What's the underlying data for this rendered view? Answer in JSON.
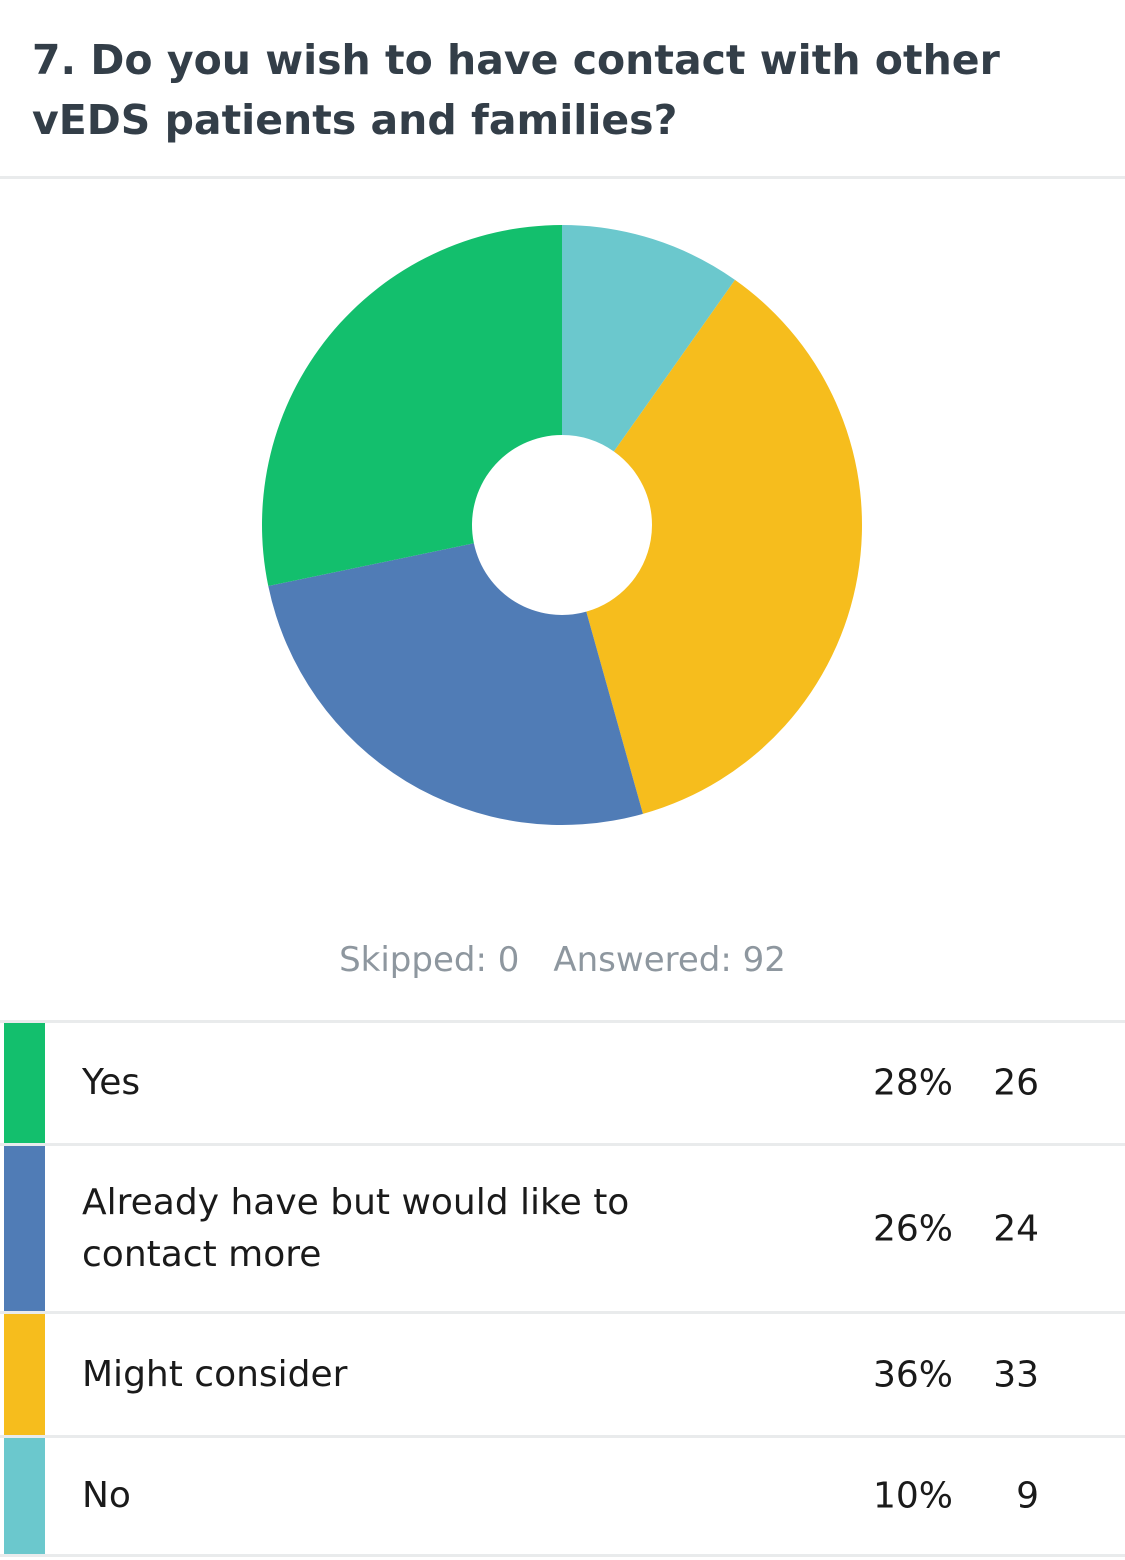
{
  "question": {
    "title": "7. Do you wish to have contact with other vEDS patients and families?"
  },
  "summary": {
    "skipped_label": "Skipped: 0",
    "answered_label": "Answered: 92"
  },
  "chart_data": {
    "type": "pie",
    "donut": true,
    "title": "7. Do you wish to have contact with other vEDS patients and families?",
    "start": "top, clockwise",
    "slices": [
      {
        "label": "No",
        "percent": 10,
        "count": 9,
        "color": "#6bc8cd"
      },
      {
        "label": "Might consider",
        "percent": 36,
        "count": 33,
        "color": "#f6bd1d"
      },
      {
        "label": "Already have but would like to contact more",
        "percent": 26,
        "count": 24,
        "color": "#507cb6"
      },
      {
        "label": "Yes",
        "percent": 28,
        "count": 26,
        "color": "#13bf6d"
      }
    ]
  },
  "table": {
    "rows": [
      {
        "label": "Yes",
        "percent": "28%",
        "count": "26",
        "color": "#13bf6d"
      },
      {
        "label": "Already have but would like to contact more",
        "percent": "26%",
        "count": "24",
        "color": "#507cb6"
      },
      {
        "label": "Might consider",
        "percent": "36%",
        "count": "33",
        "color": "#f6bd1d"
      },
      {
        "label": "No",
        "percent": "10%",
        "count": "9",
        "color": "#6bc8cd"
      }
    ]
  }
}
